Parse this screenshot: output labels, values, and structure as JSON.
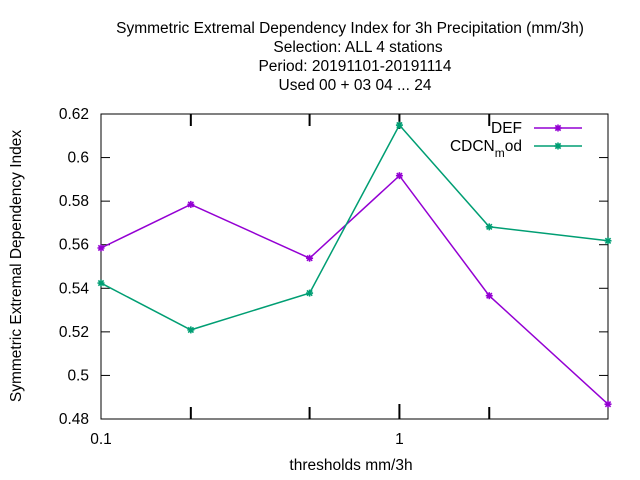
{
  "chart_data": {
    "type": "line",
    "title_lines": [
      "Symmetric Extremal Dependency Index  for 3h Precipitation (mm/3h)",
      "Selection: ALL      4 stations",
      "Period: 20191101-20191114",
      "Used  00 + 03 04 ... 24"
    ],
    "xlabel": "thresholds mm/3h",
    "ylabel": "Symmetric Extremal Dependency Index",
    "x_scale": "log",
    "xlim": [
      0.1,
      5
    ],
    "ylim": [
      0.48,
      0.62
    ],
    "y_ticks": [
      0.48,
      0.5,
      0.52,
      0.54,
      0.56,
      0.58,
      0.6,
      0.62
    ],
    "y_tick_labels": [
      "0.48",
      "0.5",
      "0.52",
      "0.54",
      "0.56",
      "0.58",
      "0.6",
      "0.62"
    ],
    "x_ticks": [
      0.1,
      0.2,
      0.5,
      1,
      2,
      5
    ],
    "x_tick_labels": [
      "0.1",
      "",
      "",
      "1",
      "",
      ""
    ],
    "grid": false,
    "legend_position": "top-right",
    "series": [
      {
        "name": "DEF",
        "color": "#9400d3",
        "x": [
          0.1,
          0.2,
          0.5,
          1,
          2,
          5
        ],
        "values": [
          0.5585,
          0.5785,
          0.5538,
          0.5917,
          0.5366,
          0.4868
        ]
      },
      {
        "name": "CDCN_mod",
        "name_main": "CDCN",
        "name_sub": "m",
        "name_rest": "od",
        "color": "#009e73",
        "x": [
          0.1,
          0.2,
          0.5,
          1,
          2,
          5
        ],
        "values": [
          0.5424,
          0.5209,
          0.5378,
          0.6149,
          0.5682,
          0.5618
        ]
      }
    ]
  }
}
